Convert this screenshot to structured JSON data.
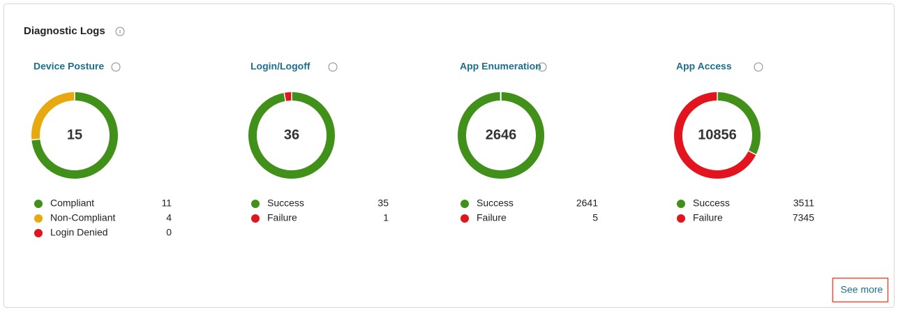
{
  "header": {
    "title": "Diagnostic Logs"
  },
  "panels": [
    {
      "title": "Device Posture",
      "total": 15,
      "items": [
        {
          "label": "Compliant",
          "value": 11,
          "color": "#41901a"
        },
        {
          "label": "Non-Compliant",
          "value": 4,
          "color": "#e8a90e"
        },
        {
          "label": "Login Denied",
          "value": 0,
          "color": "#e3141e"
        }
      ]
    },
    {
      "title": "Login/Logoff",
      "total": 36,
      "items": [
        {
          "label": "Success",
          "value": 35,
          "color": "#41901a"
        },
        {
          "label": "Failure",
          "value": 1,
          "color": "#e3141e"
        }
      ]
    },
    {
      "title": "App Enumeration",
      "total": 2646,
      "items": [
        {
          "label": "Success",
          "value": 2641,
          "color": "#41901a"
        },
        {
          "label": "Failure",
          "value": 5,
          "color": "#e3141e"
        }
      ]
    },
    {
      "title": "App Access",
      "total": 10856,
      "items": [
        {
          "label": "Success",
          "value": 3511,
          "color": "#41901a"
        },
        {
          "label": "Failure",
          "value": 7345,
          "color": "#e3141e"
        }
      ]
    }
  ],
  "footer": {
    "link": "See more"
  }
}
